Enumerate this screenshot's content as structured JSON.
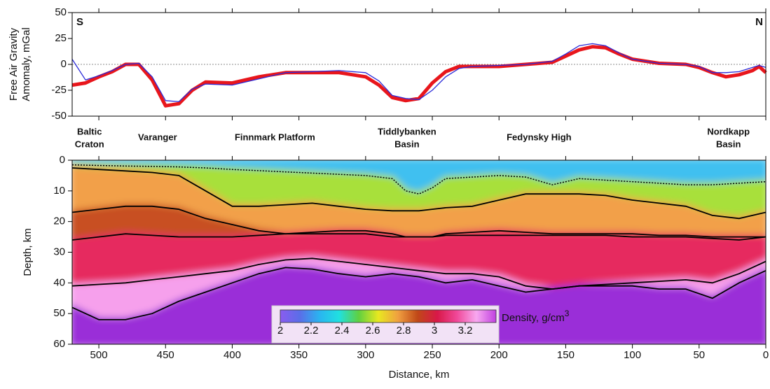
{
  "chart_data": [
    {
      "type": "line",
      "ylabel": [
        "Free Air Gravity",
        "Amomaly, mGal"
      ],
      "annotations": [
        "S",
        "N"
      ],
      "x": [
        520,
        510,
        500,
        490,
        480,
        470,
        460,
        450,
        440,
        430,
        420,
        400,
        380,
        360,
        340,
        320,
        300,
        290,
        280,
        270,
        260,
        250,
        240,
        230,
        220,
        200,
        180,
        160,
        150,
        140,
        130,
        120,
        110,
        100,
        80,
        60,
        50,
        40,
        30,
        20,
        10,
        5,
        0
      ],
      "series": [
        {
          "color": "#e8161c",
          "values": [
            -20,
            -18,
            -12,
            -7,
            0,
            0,
            -15,
            -40,
            -38,
            -25,
            -17,
            -18,
            -12,
            -8,
            -8,
            -8,
            -12,
            -20,
            -32,
            -35,
            -33,
            -18,
            -7,
            -2,
            -2,
            -2,
            0,
            2,
            8,
            14,
            17,
            16,
            10,
            5,
            1,
            0,
            -3,
            -8,
            -12,
            -10,
            -6,
            -2,
            -8
          ]
        },
        {
          "color": "#2a2ad8",
          "values": [
            5,
            -15,
            -11,
            -6,
            0,
            1,
            -12,
            -35,
            -36,
            -24,
            -19,
            -20,
            -14,
            -8,
            -7,
            -6,
            -8,
            -16,
            -30,
            -33,
            -34,
            -25,
            -12,
            -4,
            -2,
            -1,
            0,
            3,
            10,
            18,
            20,
            18,
            11,
            5,
            1,
            0,
            -2,
            -8,
            -8,
            -7,
            -3,
            -1,
            -3
          ]
        }
      ],
      "xlim": [
        520,
        0
      ],
      "ylim": [
        -50,
        50
      ],
      "yticks": [
        -50,
        -25,
        0,
        25,
        50
      ],
      "zero_line": true
    },
    {
      "type": "section",
      "xlabel": "Distance, km",
      "ylabel": "Depth, km",
      "regions": [
        {
          "lines": [
            "Baltic",
            "Craton"
          ],
          "x": 507
        },
        {
          "lines": [
            "Varanger"
          ],
          "x": 456
        },
        {
          "lines": [
            "Finnmark Platform"
          ],
          "x": 368
        },
        {
          "lines": [
            "Tiddlybanken",
            "Basin"
          ],
          "x": 269
        },
        {
          "lines": [
            "Fedynsky High"
          ],
          "x": 170
        },
        {
          "lines": [
            "Nordkapp",
            "Basin"
          ],
          "x": 28
        }
      ],
      "x": [
        520,
        500,
        480,
        460,
        440,
        420,
        400,
        380,
        360,
        340,
        320,
        300,
        280,
        270,
        260,
        250,
        240,
        220,
        200,
        180,
        160,
        140,
        120,
        100,
        80,
        60,
        40,
        20,
        0
      ],
      "series": [
        {
          "color": "#000000",
          "style": "dotted",
          "values": [
            1.5,
            1.7,
            1.9,
            2,
            2.2,
            2.5,
            3,
            3.4,
            3.8,
            4.2,
            4.6,
            5,
            6,
            10,
            11,
            9,
            6,
            5.5,
            5,
            5.5,
            8,
            6,
            6.5,
            7,
            7.5,
            8,
            8,
            7.5,
            7
          ]
        },
        {
          "color": "#000000",
          "style": "solid",
          "values": [
            2.5,
            3,
            3.5,
            4,
            5,
            10,
            15,
            15,
            14.5,
            14,
            15,
            16,
            16.5,
            16.5,
            16.5,
            16,
            15.5,
            15,
            13,
            11,
            11,
            11,
            11.5,
            13,
            14,
            15,
            18,
            19,
            17
          ]
        },
        {
          "color": "#000000",
          "style": "solid",
          "values": [
            17,
            16,
            15,
            15,
            16,
            19,
            21,
            23,
            24,
            24,
            24,
            24,
            25,
            25,
            25,
            25,
            24.5,
            24.5,
            24.5,
            24.5,
            24.5,
            24.5,
            24.5,
            25,
            25,
            25,
            25.5,
            26,
            25
          ]
        },
        {
          "color": "#000000",
          "style": "solid",
          "values": [
            26,
            25,
            24,
            24.5,
            25,
            25,
            25,
            24.5,
            24,
            23.5,
            23,
            23,
            24,
            25,
            25,
            25,
            24,
            23.5,
            23,
            23.5,
            24,
            24,
            24,
            24,
            24.5,
            24.5,
            25,
            25,
            25
          ]
        },
        {
          "color": "#000000",
          "style": "solid",
          "values": [
            41,
            40.5,
            40,
            39,
            38,
            37,
            36,
            34,
            32.5,
            32,
            33,
            34,
            35,
            35.5,
            36,
            36.5,
            37,
            37,
            38,
            41,
            42,
            41,
            40.5,
            40,
            39.5,
            39,
            40,
            37,
            33
          ]
        },
        {
          "color": "#000000",
          "style": "solid",
          "values": [
            48,
            52,
            52,
            50,
            46,
            43,
            40,
            37,
            35,
            35.5,
            37,
            38,
            37,
            37.5,
            38,
            39,
            40,
            39,
            41,
            43,
            42,
            41,
            41,
            41,
            42,
            42,
            45,
            40,
            36
          ]
        }
      ],
      "layer_colors": [
        "#3fc0f0",
        "#a8e03a",
        "#f2a048",
        "#c85020",
        "#e62a5e",
        "#f6a0ec",
        "#9a2ed8"
      ],
      "xlim": [
        520,
        0
      ],
      "ylim": [
        60,
        0
      ],
      "xticks": [
        500,
        450,
        400,
        350,
        300,
        250,
        200,
        150,
        100,
        50,
        0
      ],
      "yticks": [
        0,
        10,
        20,
        30,
        40,
        50,
        60
      ],
      "colorbar": {
        "label": "Density, g/cm",
        "label_sup": "3",
        "lim": [
          2,
          3.4
        ],
        "ticks": [
          2,
          2.2,
          2.4,
          2.6,
          2.8,
          3,
          3.2
        ],
        "colors": [
          "#8a5cf0",
          "#5a6ee8",
          "#2ab4f0",
          "#20e0e0",
          "#60d040",
          "#e8e820",
          "#f0a040",
          "#c04818",
          "#d81848",
          "#f04898",
          "#f8a8f0",
          "#c040e0"
        ]
      }
    }
  ]
}
